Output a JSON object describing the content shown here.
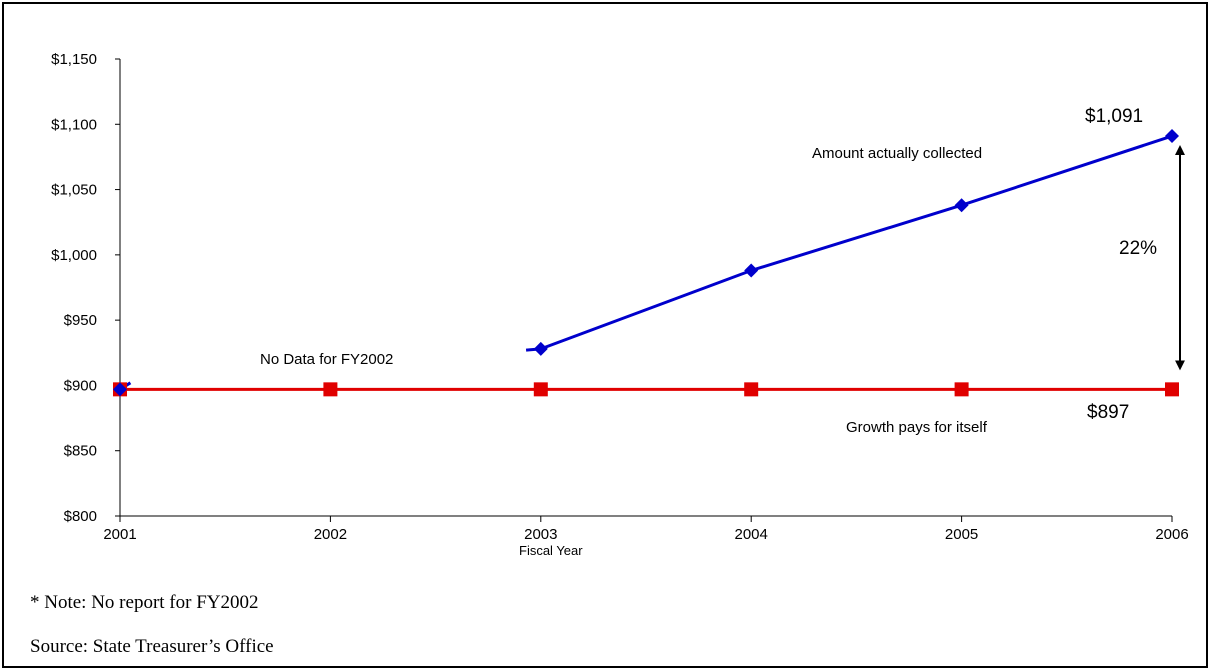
{
  "chart_data": {
    "type": "line",
    "x": [
      "2001",
      "2002",
      "2003",
      "2004",
      "2005",
      "2006"
    ],
    "xlabel": "Fiscal Year",
    "ylabel": "",
    "ylim": [
      800,
      1150
    ],
    "y_ticks": [
      "$800",
      "$850",
      "$900",
      "$950",
      "$1,000",
      "$1,050",
      "$1,100",
      "$1,150"
    ],
    "grid": false,
    "series": [
      {
        "name": "Amount actually collected",
        "color": "#0000cc",
        "marker": "diamond",
        "values": [
          897,
          null,
          928,
          988,
          1038,
          1091
        ]
      },
      {
        "name": "Growth pays for itself",
        "color": "#e00000",
        "marker": "square",
        "values": [
          897,
          897,
          897,
          897,
          897,
          897
        ]
      }
    ],
    "annotations": {
      "no_data": "No Data for FY2002",
      "collected_label": "Amount actually collected",
      "growth_label": "Growth pays for itself",
      "end_collected": "$1,091",
      "end_growth": "$897",
      "gap_pct": "22%"
    }
  },
  "footnotes": {
    "note": "* Note: No report for FY2002",
    "source": "Source: State Treasurer’s Office"
  }
}
